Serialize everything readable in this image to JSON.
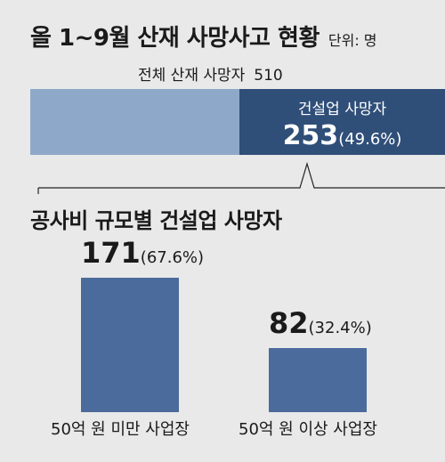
{
  "header": {
    "title": "올 1~9월 산재 사망사고 현황",
    "unit": "단위: 명"
  },
  "total": {
    "label": "전체 산재 사망자",
    "value": "510"
  },
  "subtitle": "공사비 규모별 건설업 사망자",
  "colors": {
    "background": "#e9e9e9",
    "stack_other": "#8ea8c9",
    "stack_construction": "#2f4f79",
    "bars": "#4a6b9b"
  },
  "chart_data": [
    {
      "type": "bar",
      "orientation": "horizontal-stacked",
      "total": 510,
      "segments": [
        {
          "name": "",
          "value": 257,
          "label": "",
          "value_label": "",
          "pct_label": ""
        },
        {
          "name": "건설업 사망자",
          "value": 253,
          "label": "건설업 사망자",
          "value_label": "253",
          "pct_label": "(49.6%)"
        }
      ]
    },
    {
      "type": "bar",
      "title": "공사비 규모별 건설업 사망자",
      "categories": [
        "50억 원 미만 사업장",
        "50억 원 이상 사업장"
      ],
      "values": [
        171,
        82
      ],
      "value_labels": [
        "171",
        "82"
      ],
      "pct_labels": [
        "(67.6%)",
        "(32.4%)"
      ],
      "ylim": [
        0,
        171
      ]
    }
  ]
}
